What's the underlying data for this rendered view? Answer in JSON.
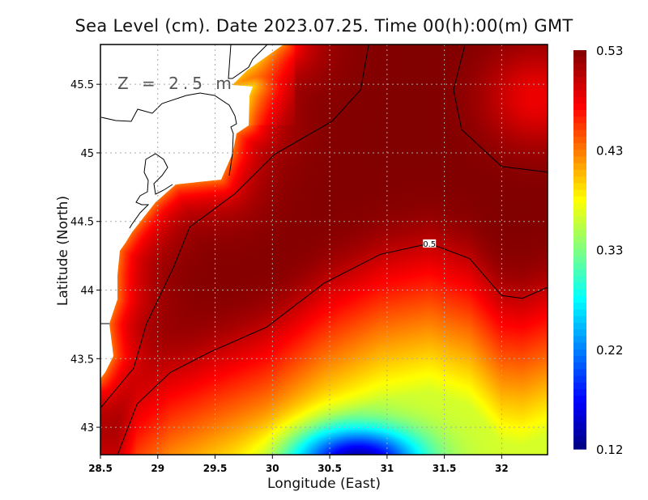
{
  "chart_data": {
    "type": "heatmap",
    "title": "Sea Level (cm). Date 2023.07.25. Time 00(h):00(m) GMT",
    "xlabel": "Longitude (East)",
    "ylabel": "Latitude (North)",
    "annotation": "Z = 2.5 m",
    "xlim": [
      28.5,
      32.4
    ],
    "ylim": [
      42.8,
      45.79
    ],
    "xticks": [
      "28.5",
      "29",
      "29.5",
      "30",
      "30.5",
      "31",
      "31.5",
      "32"
    ],
    "yticks": [
      "43",
      "43.5",
      "44",
      "44.5",
      "45",
      "45.5"
    ],
    "grid": true,
    "colormap": "jet",
    "colorbar": {
      "range": [
        0.12,
        0.53
      ],
      "ticks": [
        "0.53",
        "0.43",
        "0.33",
        "0.22",
        "0.12"
      ],
      "placement": "right"
    },
    "land_color": "#ffffff",
    "field_summary": {
      "max_value": 0.53,
      "min_value": 0.12,
      "max_regions": [
        [
          30.8,
          44.8
        ],
        [
          29.3,
          43.8
        ],
        [
          32.2,
          44.5
        ]
      ],
      "min_region": [
        30.75,
        42.8
      ]
    },
    "contours": [
      {
        "level": "",
        "points": [
          [
            28.5,
            43.14
          ],
          [
            28.79,
            43.43
          ],
          [
            28.9,
            43.75
          ],
          [
            29.14,
            44.17
          ],
          [
            29.28,
            44.46
          ],
          [
            29.67,
            44.7
          ],
          [
            30.02,
            44.99
          ],
          [
            30.52,
            45.23
          ],
          [
            30.77,
            45.46
          ],
          [
            30.84,
            45.79
          ]
        ]
      },
      {
        "level": "0.5",
        "label_at": [
          31.37,
          44.34
        ],
        "points": [
          [
            28.65,
            42.8
          ],
          [
            28.82,
            43.17
          ],
          [
            29.11,
            43.4
          ],
          [
            29.46,
            43.55
          ],
          [
            29.95,
            43.73
          ],
          [
            30.45,
            44.05
          ],
          [
            30.94,
            44.26
          ],
          [
            31.37,
            44.34
          ],
          [
            31.72,
            44.23
          ],
          [
            32.0,
            43.96
          ],
          [
            32.18,
            43.94
          ],
          [
            32.4,
            44.02
          ]
        ]
      },
      {
        "level": "",
        "points": [
          [
            31.68,
            45.79
          ],
          [
            31.58,
            45.46
          ],
          [
            31.65,
            45.17
          ],
          [
            32.0,
            44.9
          ],
          [
            32.4,
            44.86
          ]
        ]
      }
    ]
  }
}
